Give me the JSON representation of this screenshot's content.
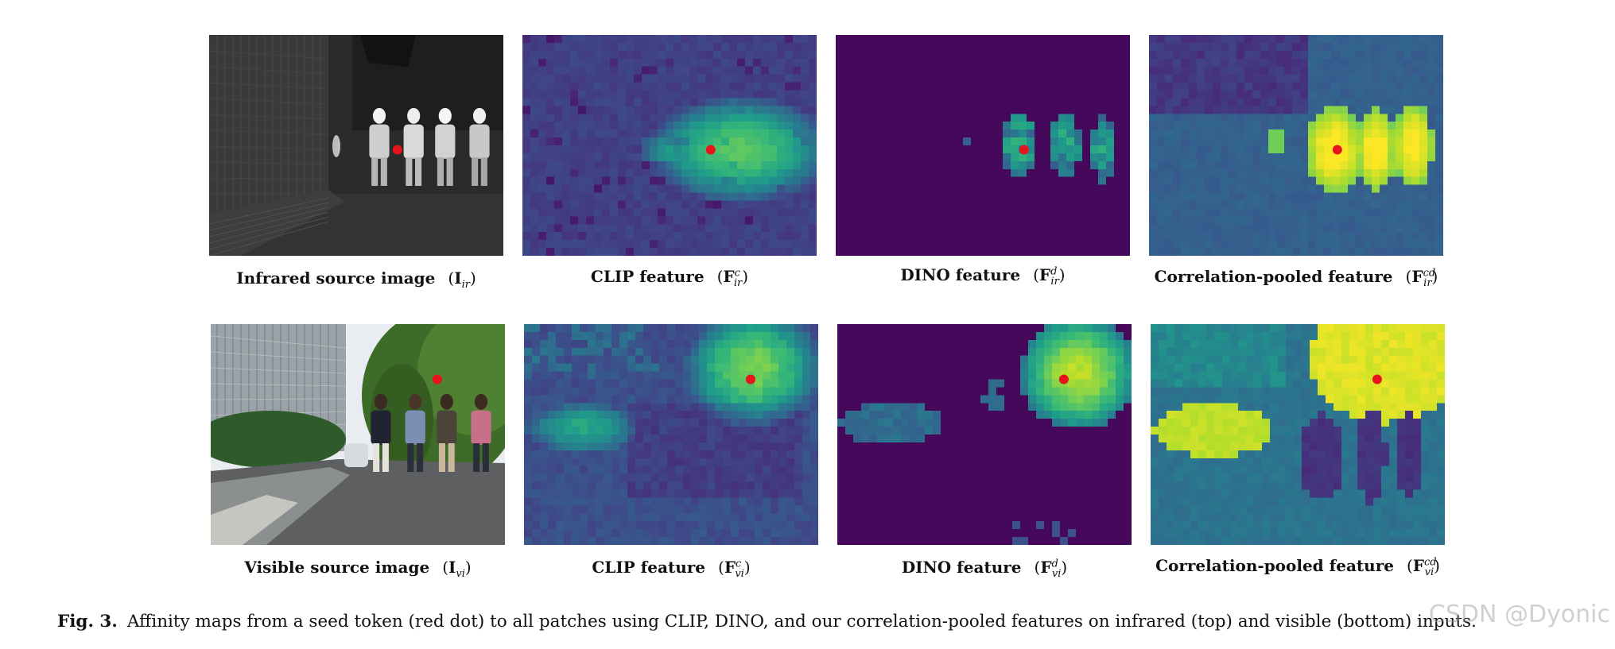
{
  "figure": {
    "rows": [
      {
        "name": "infrared",
        "panels": [
          {
            "id": "ir-source",
            "kind": "photo",
            "modality": "infrared",
            "caption": "Infrared source image",
            "sym_base": "I",
            "sym_sup": "",
            "sym_sub": "ir"
          },
          {
            "id": "ir-clip",
            "kind": "heatmap",
            "variant": "clip-ir",
            "caption": "CLIP feature",
            "sym_base": "F",
            "sym_sup": "c",
            "sym_sub": "ir"
          },
          {
            "id": "ir-dino",
            "kind": "heatmap",
            "variant": "dino-ir",
            "caption": "DINO feature",
            "sym_base": "F",
            "sym_sup": "d",
            "sym_sub": "ir"
          },
          {
            "id": "ir-corr",
            "kind": "heatmap",
            "variant": "corr-ir",
            "caption": "Correlation-pooled feature",
            "sym_base": "F",
            "sym_sup": "cd",
            "sym_sub": "ir"
          }
        ]
      },
      {
        "name": "visible",
        "panels": [
          {
            "id": "vi-source",
            "kind": "photo",
            "modality": "visible",
            "caption": "Visible source image",
            "sym_base": "I",
            "sym_sup": "",
            "sym_sub": "vi"
          },
          {
            "id": "vi-clip",
            "kind": "heatmap",
            "variant": "clip-vi",
            "caption": "CLIP feature",
            "sym_base": "F",
            "sym_sup": "c",
            "sym_sub": "vi"
          },
          {
            "id": "vi-dino",
            "kind": "heatmap",
            "variant": "dino-vi",
            "caption": "DINO feature",
            "sym_base": "F",
            "sym_sup": "d",
            "sym_sub": "vi"
          },
          {
            "id": "vi-corr",
            "kind": "heatmap",
            "variant": "corr-vi",
            "caption": "Correlation-pooled feature",
            "sym_base": "F",
            "sym_sup": "cd",
            "sym_sub": "vi"
          }
        ]
      }
    ],
    "seed_color": "#e8141c",
    "colormap": "viridis",
    "caption_label": "Fig. 3.",
    "caption_text": "Affinity maps from a seed token (red dot) to all patches using CLIP, DINO, and our correlation-pooled features on infrared (top) and visible (bottom) inputs.",
    "watermark": "CSDN @Dyonic"
  }
}
